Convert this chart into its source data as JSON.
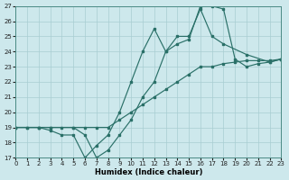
{
  "xlabel": "Humidex (Indice chaleur)",
  "bg_color": "#cde8ec",
  "grid_color": "#a8cdd2",
  "line_color": "#2a7068",
  "xlim": [
    0,
    23
  ],
  "ylim": [
    17,
    27
  ],
  "xtick_vals": [
    0,
    1,
    2,
    3,
    4,
    5,
    6,
    7,
    8,
    9,
    10,
    11,
    12,
    13,
    14,
    15,
    16,
    17,
    18,
    19,
    20,
    21,
    22,
    23
  ],
  "ytick_vals": [
    17,
    18,
    19,
    20,
    21,
    22,
    23,
    24,
    25,
    26,
    27
  ],
  "line1_x": [
    0,
    1,
    2,
    3,
    4,
    5,
    6,
    7,
    8,
    9,
    10,
    11,
    12,
    13,
    14,
    15,
    16,
    17,
    18,
    19,
    20,
    21,
    22,
    23
  ],
  "line1_y": [
    19,
    19,
    19,
    19,
    19,
    19,
    19,
    19,
    19,
    19.5,
    20,
    20.5,
    21,
    21.5,
    22,
    22.5,
    23,
    23,
    23.2,
    23.3,
    23.4,
    23.4,
    23.4,
    23.5
  ],
  "line2_x": [
    0,
    1,
    2,
    3,
    4,
    5,
    6,
    7,
    8,
    9,
    10,
    11,
    12,
    13,
    14,
    15,
    16,
    17,
    18,
    19,
    20,
    21,
    22,
    23
  ],
  "line2_y": [
    19,
    19,
    19,
    18.8,
    18.5,
    18.5,
    17.0,
    17.8,
    18.5,
    20,
    22,
    24,
    25.5,
    24,
    24.5,
    24.8,
    27,
    27,
    26.8,
    23.5,
    23,
    23.2,
    23.3,
    23.5
  ],
  "line3_x": [
    0,
    2,
    3,
    5,
    6,
    7,
    8,
    9,
    10,
    11,
    12,
    13,
    14,
    15,
    16,
    17,
    18,
    20,
    22,
    23
  ],
  "line3_y": [
    19,
    19,
    19,
    19,
    18.5,
    17,
    17.5,
    18.5,
    19.5,
    21,
    22,
    24,
    25,
    25,
    26.8,
    25,
    24.5,
    23.8,
    23.3,
    23.5
  ]
}
